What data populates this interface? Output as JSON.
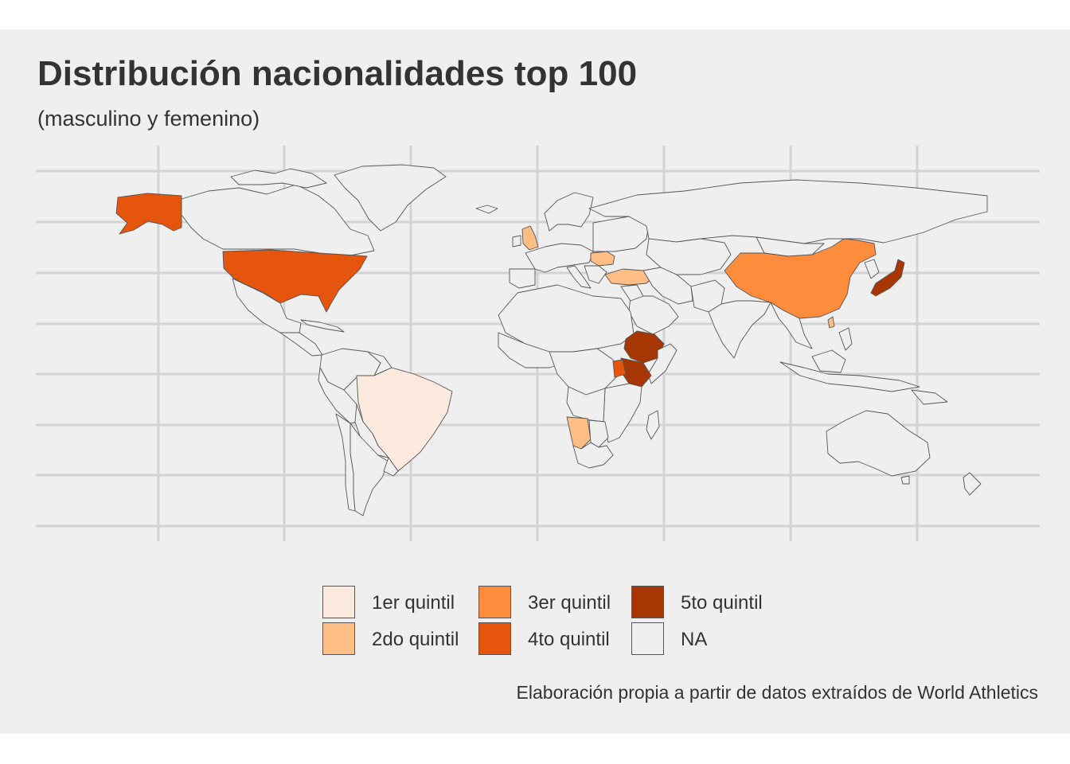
{
  "title": "Distribución nacionalidades top 100",
  "subtitle": "(masculino y femenino)",
  "caption": "Elaboración propia a partir de datos extraídos de World Athletics",
  "legend": [
    {
      "label": "1er quintil",
      "color": "#fdeadf"
    },
    {
      "label": "2do quintil",
      "color": "#fdbe85"
    },
    {
      "label": "3er quintil",
      "color": "#fd8d3c"
    },
    {
      "label": "4to quintil",
      "color": "#e6550d"
    },
    {
      "label": "5to quintil",
      "color": "#a63603"
    },
    {
      "label": "NA",
      "color": "#efefef"
    }
  ],
  "colors": {
    "panel": "#efefef",
    "grid": "#d3d3d3",
    "border": "#555555",
    "text": "#333333"
  },
  "map": {
    "quintil_by_country": {
      "Estados Unidos": "4to quintil",
      "Alaska (Estados Unidos)": "4to quintil",
      "Brasil": "1er quintil",
      "Reino Unido": "2do quintil",
      "Rumania": "2do quintil",
      "Turquía": "2do quintil",
      "Namibia": "2do quintil",
      "Taiwán": "2do quintil",
      "China": "3er quintil",
      "Uganda": "4to quintil",
      "Japón": "5to quintil",
      "Etiopía": "5to quintil",
      "Kenia": "5to quintil"
    }
  }
}
